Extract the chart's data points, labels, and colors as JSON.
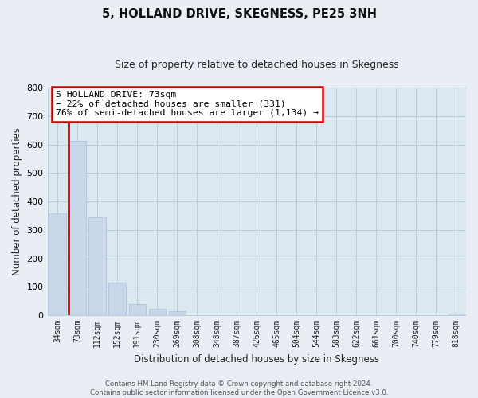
{
  "title": "5, HOLLAND DRIVE, SKEGNESS, PE25 3NH",
  "subtitle": "Size of property relative to detached houses in Skegness",
  "bar_labels": [
    "34sqm",
    "73sqm",
    "112sqm",
    "152sqm",
    "191sqm",
    "230sqm",
    "269sqm",
    "308sqm",
    "348sqm",
    "387sqm",
    "426sqm",
    "465sqm",
    "504sqm",
    "544sqm",
    "583sqm",
    "622sqm",
    "661sqm",
    "700sqm",
    "740sqm",
    "779sqm",
    "818sqm"
  ],
  "bar_values": [
    357,
    614,
    343,
    115,
    40,
    22,
    14,
    0,
    0,
    0,
    0,
    0,
    0,
    0,
    0,
    0,
    0,
    0,
    0,
    0,
    5
  ],
  "highlight_bar_index": 1,
  "bar_color": "#c8d8ea",
  "bar_edge_color": "#a8c0d8",
  "highlight_edge_color": "#cc0000",
  "ylabel": "Number of detached properties",
  "xlabel": "Distribution of detached houses by size in Skegness",
  "ylim": [
    0,
    800
  ],
  "yticks": [
    0,
    100,
    200,
    300,
    400,
    500,
    600,
    700,
    800
  ],
  "annotation_title": "5 HOLLAND DRIVE: 73sqm",
  "annotation_line1": "← 22% of detached houses are smaller (331)",
  "annotation_line2": "76% of semi-detached houses are larger (1,134) →",
  "annotation_box_edge": "#cc0000",
  "footer_line1": "Contains HM Land Registry data © Crown copyright and database right 2024.",
  "footer_line2": "Contains public sector information licensed under the Open Government Licence v3.0.",
  "background_color": "#e8eef4",
  "plot_bg_color": "#dce8f0",
  "grid_color": "#b8ccd8"
}
